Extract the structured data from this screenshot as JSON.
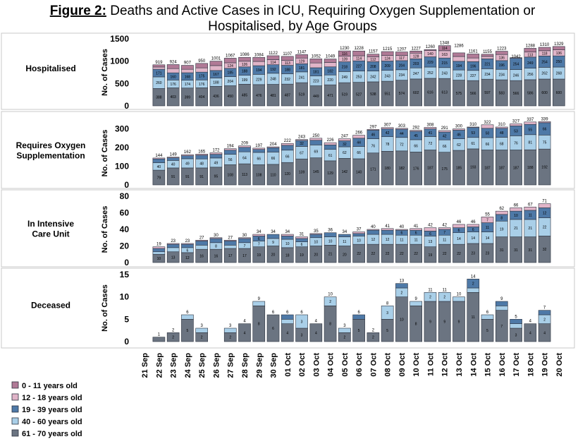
{
  "chart_data": {
    "type": "bar",
    "title_prefix": "Figure 2:",
    "title_line1": "Deaths and Active Cases in ICU, Requiring Oxygen Supplementation or",
    "title_line2": "Hospitalised, by Age Groups",
    "ylabel": "No. of Cases",
    "categories": [
      "21 Sep",
      "22 Sep",
      "23 Sep",
      "24 Sep",
      "25 Sep",
      "26 Sep",
      "27 Sep",
      "28 Sep",
      "29 Sep",
      "30 Sep",
      "01 Oct",
      "02 Oct",
      "03 Oct",
      "04 Oct",
      "05 Oct",
      "06 Oct",
      "07 Oct",
      "08 Oct",
      "09 Oct",
      "10 Oct",
      "11 Oct",
      "12 Oct",
      "13 Oct",
      "14 Oct",
      "15 Oct",
      "16 Oct",
      "17 Oct",
      "18 Oct",
      "19 Oct",
      "20 Oct"
    ],
    "legend": [
      {
        "label": "0 - 11 years old",
        "color": "#b07a96"
      },
      {
        "label": "12 - 18 years old",
        "color": "#e0b4c8"
      },
      {
        "label": "19 - 39 years old",
        "color": "#4e79a7"
      },
      {
        "label": "40 - 60 years old",
        "color": "#a9cfe8"
      },
      {
        "label": "61 - 70 years old",
        "color": "#6b7481"
      }
    ],
    "panels": [
      {
        "name": "Hospitalised",
        "ylim": [
          0,
          1500
        ],
        "yticks": [
          0,
          500,
          1000,
          1500
        ],
        "start_index": 1,
        "totals": [
          919,
          924,
          907,
          950,
          1001,
          1067,
          1086,
          1084,
          1122,
          1107,
          1147,
          1052,
          1049,
          1230,
          1228,
          1157,
          1215,
          1207,
          1227,
          1260,
          1348,
          1286,
          1161,
          1155,
          1223,
          1042,
          1288,
          1310,
          1329
        ],
        "series": [
          {
            "name": "61 - 70 years old",
            "values": [
              388,
              403,
              399,
              404,
              436,
              450,
              485,
              476,
              481,
              487,
              519,
              449,
              471,
              519,
              527,
              538,
              551,
              574,
              602,
              616,
              613,
              575,
              566,
              597,
              583,
              566,
              586,
              600,
              600
            ]
          },
          {
            "name": "40 - 60 years old",
            "values": [
              260,
              176,
              174,
              176,
              188,
              204,
              199,
              229,
              248,
              232,
              241,
              223,
              220,
              249,
              253,
              242,
              243,
              234,
              247,
              252,
              243,
              228,
              227,
              234,
              234,
              246,
              256,
              262,
              268
            ]
          },
          {
            "name": "19 - 39 years old",
            "values": [
              171,
              160,
              168,
              175,
              167,
              185,
              188,
              194,
              192,
              188,
              181,
              181,
              182,
              218,
              227,
              208,
              209,
              204,
              203,
              229,
              215,
              194,
              196,
              221,
              196,
              254,
              249,
              254,
              250
            ]
          },
          {
            "name": "12 - 18 years old",
            "values": [
              50,
              95,
              77,
              95,
              110,
              124,
              126,
              95,
              114,
              113,
              129,
              107,
              99,
              128,
              114,
              112,
              124,
              117,
              128,
              140,
              163,
              108,
              82,
              54,
              136,
              14,
              113,
              118,
              136
            ]
          },
          {
            "name": "0 - 11 years old",
            "values": [
              50,
              90,
              89,
              100,
              100,
              104,
              88,
              90,
              87,
              87,
              77,
              92,
              77,
              116,
              107,
              57,
              88,
              78,
              47,
              23,
              114,
              81,
              90,
              49,
              74,
              -38,
              84,
              76,
              75
            ]
          }
        ]
      },
      {
        "name": "Requires Oxygen Supplementation",
        "ylim": [
          0,
          340
        ],
        "yticks": [
          0,
          100,
          200,
          300
        ],
        "start_index": 1,
        "totals": [
          144,
          149,
          162,
          165,
          172,
          194,
          209,
          197,
          204,
          222,
          243,
          250,
          226,
          247,
          266,
          297,
          307,
          303,
          292,
          308,
          291,
          300,
          310,
          322,
          310,
          327,
          337,
          339
        ],
        "series": [
          {
            "name": "61 - 70 years old",
            "values": [
              79,
              91,
              91,
              91,
              95,
              108,
              113,
              108,
              110,
              120,
              139,
              145,
              129,
              142,
              140,
              171,
              180,
              182,
              176,
              187,
              175,
              185,
              193,
              187,
              187,
              187,
              188,
              192
            ]
          },
          {
            "name": "40 - 60 years old",
            "values": [
              40,
              40,
              49,
              48,
              49,
              56,
              64,
              66,
              66,
              66,
              67,
              69,
              61,
              62,
              66,
              76,
              78,
              72,
              66,
              72,
              66,
              62,
              61,
              66,
              68,
              76,
              81,
              75
            ]
          },
          {
            "name": "19 - 39 years old",
            "values": [
              20,
              14,
              16,
              20,
              20,
              22,
              24,
              16,
              23,
              26,
              32,
              25,
              24,
              32,
              44,
              46,
              42,
              44,
              45,
              41,
              42,
              46,
              53,
              50,
              48,
              53,
              55,
              66
            ]
          },
          {
            "name": "12 - 18 years old",
            "values": [
              5,
              4,
              6,
              6,
              8,
              8,
              8,
              7,
              5,
              10,
              5,
              11,
              12,
              11,
              16,
              4,
              7,
              5,
              5,
              8,
              8,
              7,
              3,
              19,
              7,
              11,
              13,
              6
            ]
          }
        ]
      },
      {
        "name": "In Intensive Care Unit",
        "ylim": [
          0,
          80
        ],
        "yticks": [
          0,
          20,
          40,
          60,
          80
        ],
        "start_index": 1,
        "totals": [
          19,
          23,
          23,
          27,
          30,
          27,
          30,
          34,
          34,
          34,
          31,
          35,
          36,
          34,
          37,
          40,
          41,
          40,
          41,
          42,
          42,
          46,
          46,
          55,
          62,
          66,
          67,
          71
        ],
        "series": [
          {
            "name": "61 - 70 years old",
            "values": [
              10,
              13,
              12,
              16,
              16,
              17,
              17,
              19,
              20,
              18,
              19,
              20,
              21,
              20,
              22,
              22,
              22,
              22,
              22,
              19,
              22,
              22,
              23,
              23,
              31,
              31,
              31,
              32
            ]
          },
          {
            "name": "40 - 60 years old",
            "values": [
              3,
              5,
              6,
              5,
              8,
              4,
              7,
              7,
              9,
              10,
              6,
              10,
              10,
              11,
              10,
              12,
              12,
              11,
              11,
              13,
              11,
              14,
              14,
              14,
              19,
              21,
              21,
              22
            ]
          },
          {
            "name": "19 - 39 years old",
            "values": [
              4,
              4,
              4,
              5,
              5,
              5,
              5,
              6,
              5,
              4,
              4,
              4,
              5,
              3,
              3,
              5,
              5,
              6,
              6,
              6,
              7,
              6,
              6,
              11,
              8,
              10,
              11,
              12
            ]
          },
          {
            "name": "12 - 18 years old",
            "values": [
              2,
              1,
              1,
              1,
              1,
              1,
              1,
              2,
              0,
              2,
              2,
              1,
              0,
              0,
              2,
              1,
              2,
              1,
              2,
              4,
              2,
              4,
              3,
              7,
              4,
              4,
              4,
              5
            ]
          }
        ]
      },
      {
        "name": "Deceased",
        "ylim": [
          0,
          15
        ],
        "yticks": [
          0,
          5,
          10,
          15
        ],
        "start_index": 1,
        "totals": [
          1,
          2,
          6,
          3,
          0,
          3,
          4,
          9,
          6,
          6,
          6,
          4,
          10,
          3,
          6,
          2,
          8,
          13,
          9,
          11,
          11,
          10,
          14,
          6,
          9,
          5,
          4,
          7
        ],
        "series": [
          {
            "name": "61 - 70 years old",
            "values": [
              1,
              2,
              5,
              2,
              0,
              2,
              4,
              8,
              6,
              4,
              3,
              4,
              8,
              2,
              5,
              2,
              5,
              10,
              8,
              9,
              9,
              9,
              11,
              5,
              7,
              3,
              4,
              4
            ]
          },
          {
            "name": "40 - 60 years old",
            "values": [
              0,
              0,
              1,
              1,
              0,
              1,
              0,
              1,
              0,
              1,
              3,
              0,
              2,
              1,
              0,
              0,
              3,
              2,
              1,
              2,
              2,
              1,
              1,
              1,
              1,
              1,
              0,
              2
            ]
          },
          {
            "name": "19 - 39 years old",
            "values": [
              0,
              0,
              0,
              0,
              0,
              0,
              0,
              0,
              0,
              1,
              0,
              0,
              0,
              0,
              1,
              0,
              0,
              1,
              0,
              0,
              0,
              0,
              2,
              0,
              1,
              1,
              0,
              1
            ]
          }
        ]
      }
    ]
  }
}
